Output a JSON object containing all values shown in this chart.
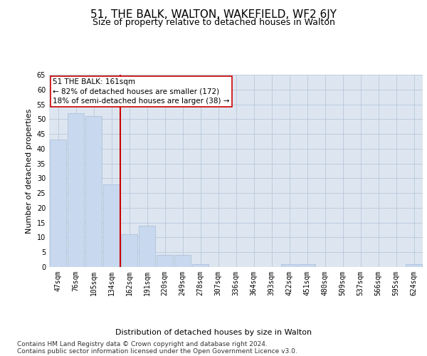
{
  "title": "51, THE BALK, WALTON, WAKEFIELD, WF2 6JY",
  "subtitle": "Size of property relative to detached houses in Walton",
  "xlabel": "Distribution of detached houses by size in Walton",
  "ylabel": "Number of detached properties",
  "categories": [
    "47sqm",
    "76sqm",
    "105sqm",
    "134sqm",
    "162sqm",
    "191sqm",
    "220sqm",
    "249sqm",
    "278sqm",
    "307sqm",
    "336sqm",
    "364sqm",
    "393sqm",
    "422sqm",
    "451sqm",
    "480sqm",
    "509sqm",
    "537sqm",
    "566sqm",
    "595sqm",
    "624sqm"
  ],
  "values": [
    43,
    52,
    51,
    28,
    11,
    14,
    4,
    4,
    1,
    0,
    0,
    0,
    0,
    1,
    1,
    0,
    0,
    0,
    0,
    0,
    1
  ],
  "bar_color": "#c8d8ee",
  "bar_edge_color": "#a8bcd8",
  "vline_color": "#cc0000",
  "annotation_text": "51 THE BALK: 161sqm\n← 82% of detached houses are smaller (172)\n18% of semi-detached houses are larger (38) →",
  "annotation_box_color": "#ffffff",
  "annotation_box_edge": "#cc0000",
  "ylim": [
    0,
    65
  ],
  "yticks": [
    0,
    5,
    10,
    15,
    20,
    25,
    30,
    35,
    40,
    45,
    50,
    55,
    60,
    65
  ],
  "footer": "Contains HM Land Registry data © Crown copyright and database right 2024.\nContains public sector information licensed under the Open Government Licence v3.0.",
  "plot_bg_color": "#dde6f0",
  "grid_color": "#b8c8dc",
  "title_fontsize": 11,
  "subtitle_fontsize": 9,
  "axis_label_fontsize": 8,
  "tick_fontsize": 7,
  "annotation_fontsize": 7.5,
  "footer_fontsize": 6.5
}
